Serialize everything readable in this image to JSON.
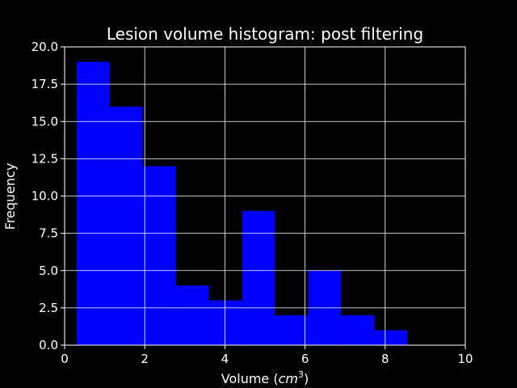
{
  "chart_data": {
    "type": "bar",
    "title": "Lesion volume histogram: post filtering",
    "xlabel": "Volume (",
    "xlabel_unit_base": "cm",
    "xlabel_unit_exp": "3",
    "xlabel_close": ")",
    "ylabel": "Frequency",
    "xlim": [
      0,
      10
    ],
    "ylim": [
      0,
      20
    ],
    "x_ticks": [
      "0",
      "2",
      "4",
      "6",
      "8",
      "10"
    ],
    "y_ticks": [
      "0.0",
      "2.5",
      "5.0",
      "7.5",
      "10.0",
      "12.5",
      "15.0",
      "17.5",
      "20.0"
    ],
    "grid": true,
    "bar_color": "#0000ff",
    "background_color": "#000000",
    "bins": [
      {
        "x0": 0.3,
        "x1": 1.13,
        "count": 19
      },
      {
        "x0": 1.13,
        "x1": 1.95,
        "count": 16
      },
      {
        "x0": 1.95,
        "x1": 2.78,
        "count": 12
      },
      {
        "x0": 2.78,
        "x1": 3.6,
        "count": 4
      },
      {
        "x0": 3.6,
        "x1": 4.43,
        "count": 3
      },
      {
        "x0": 4.43,
        "x1": 5.25,
        "count": 9
      },
      {
        "x0": 5.25,
        "x1": 6.08,
        "count": 2
      },
      {
        "x0": 6.08,
        "x1": 6.9,
        "count": 5
      },
      {
        "x0": 6.9,
        "x1": 7.73,
        "count": 2
      },
      {
        "x0": 7.73,
        "x1": 8.55,
        "count": 1
      }
    ]
  }
}
